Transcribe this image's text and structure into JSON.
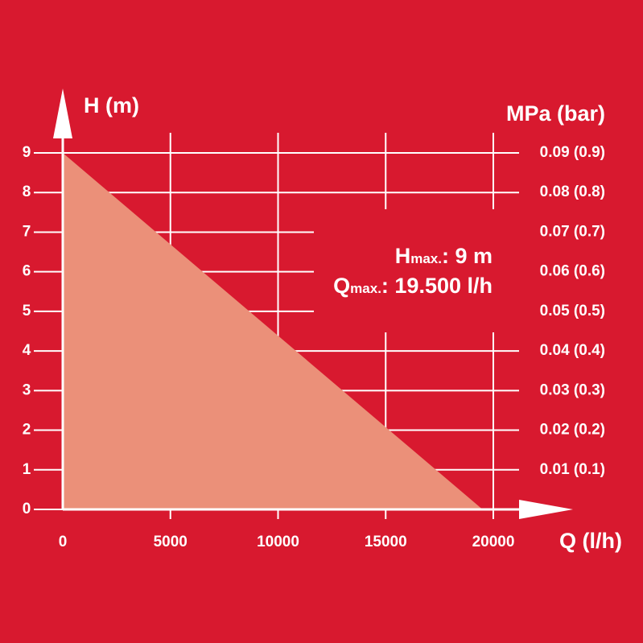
{
  "chart_data": {
    "type": "area",
    "y_axis_label": "H (m)",
    "y2_axis_label": "MPa (bar)",
    "x_axis_label": "Q (l/h)",
    "x": [
      0,
      19500
    ],
    "series": [
      {
        "name": "H",
        "color": "#eb9079",
        "values": [
          9,
          0
        ]
      }
    ],
    "xlim": [
      0,
      20000
    ],
    "xticks": [
      0,
      5000,
      10000,
      15000,
      20000
    ],
    "ylim": [
      0,
      9
    ],
    "yticks": [
      0,
      1,
      2,
      3,
      4,
      5,
      6,
      7,
      8,
      9
    ],
    "y2lim": [
      0,
      0.09
    ],
    "y2ticks": [
      {
        "value": 0.01,
        "label": "0.01 (0.1)"
      },
      {
        "value": 0.02,
        "label": "0.02 (0.2)"
      },
      {
        "value": 0.03,
        "label": "0.03 (0.3)"
      },
      {
        "value": 0.04,
        "label": "0.04 (0.4)"
      },
      {
        "value": 0.05,
        "label": "0.05 (0.5)"
      },
      {
        "value": 0.06,
        "label": "0.06 (0.6)"
      },
      {
        "value": 0.07,
        "label": "0.07 (0.7)"
      },
      {
        "value": 0.08,
        "label": "0.08 (0.8)"
      },
      {
        "value": 0.09,
        "label": "0.09 (0.9)"
      }
    ],
    "annotations": [
      {
        "symbol": "H",
        "subscript": "max.",
        "text": ": 9 m"
      },
      {
        "symbol": "Q",
        "subscript": "max.",
        "text": ": 19.500 l/h"
      }
    ],
    "grid": true,
    "background": "#d8192f"
  }
}
